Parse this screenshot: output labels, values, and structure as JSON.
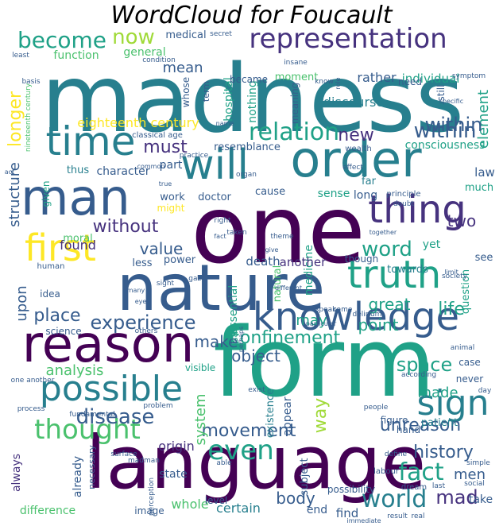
{
  "title": "WordCloud for Foucault",
  "palette": [
    "#440154",
    "#46327e",
    "#365c8d",
    "#277f8e",
    "#1fa187",
    "#4ac16d",
    "#a0da39",
    "#fde725"
  ],
  "words": [
    {
      "text": "madness",
      "color": 3
    },
    {
      "text": "form",
      "color": 4
    },
    {
      "text": "language",
      "color": 0
    },
    {
      "text": "one",
      "color": 0
    },
    {
      "text": "nature",
      "color": 2
    },
    {
      "text": "man",
      "color": 2
    },
    {
      "text": "will",
      "color": 3
    },
    {
      "text": "order",
      "color": 3
    },
    {
      "text": "reason",
      "color": 0
    },
    {
      "text": "knowledge",
      "color": 2
    },
    {
      "text": "truth",
      "color": 4
    },
    {
      "text": "time",
      "color": 3
    },
    {
      "text": "thing",
      "color": 1
    },
    {
      "text": "possible",
      "color": 3
    },
    {
      "text": "sign",
      "color": 3
    },
    {
      "text": "representation",
      "color": 1
    },
    {
      "text": "first",
      "color": 7
    },
    {
      "text": "world",
      "color": 3
    },
    {
      "text": "relation",
      "color": 4
    },
    {
      "text": "thought",
      "color": 5
    },
    {
      "text": "fact",
      "color": 4
    },
    {
      "text": "within",
      "color": 2
    },
    {
      "text": "become",
      "color": 4
    },
    {
      "text": "now",
      "color": 6
    },
    {
      "text": "experience",
      "color": 2
    },
    {
      "text": "even",
      "color": 4
    },
    {
      "text": "disease",
      "color": 2
    },
    {
      "text": "word",
      "color": 4
    },
    {
      "text": "confinement",
      "color": 4
    },
    {
      "text": "must",
      "color": 1
    },
    {
      "text": "space",
      "color": 4
    },
    {
      "text": "mad",
      "color": 1
    },
    {
      "text": "longer",
      "color": 7
    },
    {
      "text": "history",
      "color": 2
    },
    {
      "text": "without",
      "color": 1
    },
    {
      "text": "unreason",
      "color": 2
    },
    {
      "text": "life",
      "color": 4
    },
    {
      "text": "great",
      "color": 4
    },
    {
      "text": "movement",
      "color": 2
    },
    {
      "text": "analysis",
      "color": 5
    },
    {
      "text": "place",
      "color": 2
    },
    {
      "text": "body",
      "color": 2
    },
    {
      "text": "new",
      "color": 1
    },
    {
      "text": "object",
      "color": 2
    },
    {
      "text": "make",
      "color": 2
    },
    {
      "text": "value",
      "color": 2
    },
    {
      "text": "point",
      "color": 4
    },
    {
      "text": "way",
      "color": 6
    },
    {
      "text": "made",
      "color": 4
    },
    {
      "text": "men",
      "color": 2
    },
    {
      "text": "structure",
      "color": 2
    },
    {
      "text": "two",
      "color": 1
    },
    {
      "text": "mean",
      "color": 2
    },
    {
      "text": "element",
      "color": 4
    },
    {
      "text": "eighteenth century",
      "color": 7
    },
    {
      "text": "system",
      "color": 5
    },
    {
      "text": "upon",
      "color": 2
    },
    {
      "text": "may",
      "color": 4
    },
    {
      "text": "found",
      "color": 1
    },
    {
      "text": "discourse",
      "color": 3
    },
    {
      "text": "consciousness",
      "color": 4
    },
    {
      "text": "resemblance",
      "color": 2
    },
    {
      "text": "part",
      "color": 2
    },
    {
      "text": "character",
      "color": 2
    },
    {
      "text": "essential",
      "color": 4
    },
    {
      "text": "origin",
      "color": 1
    },
    {
      "text": "whole",
      "color": 5
    },
    {
      "text": "certain",
      "color": 3
    },
    {
      "text": "find",
      "color": 2
    },
    {
      "text": "end",
      "color": 2
    },
    {
      "text": "take",
      "color": 2
    },
    {
      "text": "function",
      "color": 5
    },
    {
      "text": "general",
      "color": 5
    },
    {
      "text": "rather",
      "color": 2
    },
    {
      "text": "individual",
      "color": 4
    },
    {
      "text": "within",
      "color": 2
    },
    {
      "text": "medicine",
      "color": 4
    },
    {
      "text": "natural",
      "color": 5
    },
    {
      "text": "death",
      "color": 2
    },
    {
      "text": "another",
      "color": 1
    },
    {
      "text": "towards",
      "color": 3
    },
    {
      "text": "question",
      "color": 4
    },
    {
      "text": "see",
      "color": 2
    },
    {
      "text": "yet",
      "color": 4
    },
    {
      "text": "though",
      "color": 2
    },
    {
      "text": "sense",
      "color": 4
    },
    {
      "text": "long",
      "color": 2
    },
    {
      "text": "law",
      "color": 2
    },
    {
      "text": "much",
      "color": 4
    },
    {
      "text": "far",
      "color": 3
    },
    {
      "text": "work",
      "color": 2
    },
    {
      "text": "doctor",
      "color": 2
    },
    {
      "text": "cause",
      "color": 2
    },
    {
      "text": "thus",
      "color": 3
    },
    {
      "text": "given",
      "color": 4
    },
    {
      "text": "power",
      "color": 2
    },
    {
      "text": "less",
      "color": 2
    },
    {
      "text": "moral",
      "color": 5
    },
    {
      "text": "might",
      "color": 7
    },
    {
      "text": "idea",
      "color": 2
    },
    {
      "text": "science",
      "color": 2
    },
    {
      "text": "visible",
      "color": 4
    },
    {
      "text": "case",
      "color": 2
    },
    {
      "text": "never",
      "color": 2
    },
    {
      "text": "patient",
      "color": 3
    },
    {
      "text": "hand",
      "color": 2
    },
    {
      "text": "figure",
      "color": 2
    },
    {
      "text": "appear",
      "color": 2
    },
    {
      "text": "existence",
      "color": 3
    },
    {
      "text": "subject",
      "color": 2
    },
    {
      "text": "already",
      "color": 2
    },
    {
      "text": "always",
      "color": 1
    },
    {
      "text": "necessary",
      "color": 2
    },
    {
      "text": "state",
      "color": 2
    },
    {
      "text": "image",
      "color": 2
    },
    {
      "text": "difference",
      "color": 5
    },
    {
      "text": "level",
      "color": 2
    },
    {
      "text": "possibility",
      "color": 2
    },
    {
      "text": "nothing",
      "color": 4
    },
    {
      "text": "hospital",
      "color": 4
    },
    {
      "text": "term",
      "color": 2
    },
    {
      "text": "whose",
      "color": 2
    },
    {
      "text": "became",
      "color": 2
    },
    {
      "text": "moment",
      "color": 5
    },
    {
      "text": "meaning",
      "color": 2
    },
    {
      "text": "need",
      "color": 2
    },
    {
      "text": "still",
      "color": 2
    },
    {
      "text": "medical",
      "color": 2
    },
    {
      "text": "classical age",
      "color": 2
    },
    {
      "text": "condition",
      "color": 2
    },
    {
      "text": "insane",
      "color": 2
    },
    {
      "text": "secret",
      "color": 2
    },
    {
      "text": "least",
      "color": 2
    },
    {
      "text": "basis",
      "color": 2
    },
    {
      "text": "nineteenth century",
      "color": 5
    },
    {
      "text": "wealth",
      "color": 2
    },
    {
      "text": "symptom",
      "color": 2
    },
    {
      "text": "specific",
      "color": 2
    },
    {
      "text": "effect",
      "color": 2
    },
    {
      "text": "principle",
      "color": 2
    },
    {
      "text": "doubt",
      "color": 2
    },
    {
      "text": "society",
      "color": 2
    },
    {
      "text": "together",
      "color": 2
    },
    {
      "text": "delirium",
      "color": 2
    },
    {
      "text": "speak",
      "color": 2
    },
    {
      "text": "come",
      "color": 2
    },
    {
      "text": "different",
      "color": 2
    },
    {
      "text": "give",
      "color": 2
    },
    {
      "text": "theme",
      "color": 2
    },
    {
      "text": "taken",
      "color": 2
    },
    {
      "text": "right",
      "color": 2
    },
    {
      "text": "fact",
      "color": 2
    },
    {
      "text": "human",
      "color": 2
    },
    {
      "text": "gaze",
      "color": 2
    },
    {
      "text": "sight",
      "color": 2
    },
    {
      "text": "others",
      "color": 2
    },
    {
      "text": "one another",
      "color": 2
    },
    {
      "text": "process",
      "color": 2
    },
    {
      "text": "fundamental",
      "color": 2
    },
    {
      "text": "problem",
      "color": 2
    },
    {
      "text": "surface",
      "color": 2
    },
    {
      "text": "madman",
      "color": 2
    },
    {
      "text": "able",
      "color": 2
    },
    {
      "text": "exist",
      "color": 2
    },
    {
      "text": "define",
      "color": 2
    },
    {
      "text": "dream",
      "color": 2
    },
    {
      "text": "labour",
      "color": 2
    },
    {
      "text": "people",
      "color": 2
    },
    {
      "text": "last",
      "color": 2
    },
    {
      "text": "simple",
      "color": 2
    },
    {
      "text": "result",
      "color": 2
    },
    {
      "text": "real",
      "color": 2
    },
    {
      "text": "animal",
      "color": 2
    },
    {
      "text": "according",
      "color": 2
    },
    {
      "text": "perception",
      "color": 2
    },
    {
      "text": "practice",
      "color": 2
    },
    {
      "text": "common",
      "color": 2
    },
    {
      "text": "act",
      "color": 2
    },
    {
      "text": "organ",
      "color": 2
    },
    {
      "text": "true",
      "color": 2
    },
    {
      "text": "role",
      "color": 2
    },
    {
      "text": "know",
      "color": 2
    },
    {
      "text": "name",
      "color": 2
    },
    {
      "text": "social",
      "color": 2
    },
    {
      "text": "immediate",
      "color": 2
    },
    {
      "text": "limit",
      "color": 2
    },
    {
      "text": "day",
      "color": 2
    },
    {
      "text": "many",
      "color": 2
    },
    {
      "text": "eye",
      "color": 2
    },
    {
      "text": "perhaps",
      "color": 2
    },
    {
      "text": "particular",
      "color": 2
    },
    {
      "text": "say",
      "color": 4
    }
  ]
}
